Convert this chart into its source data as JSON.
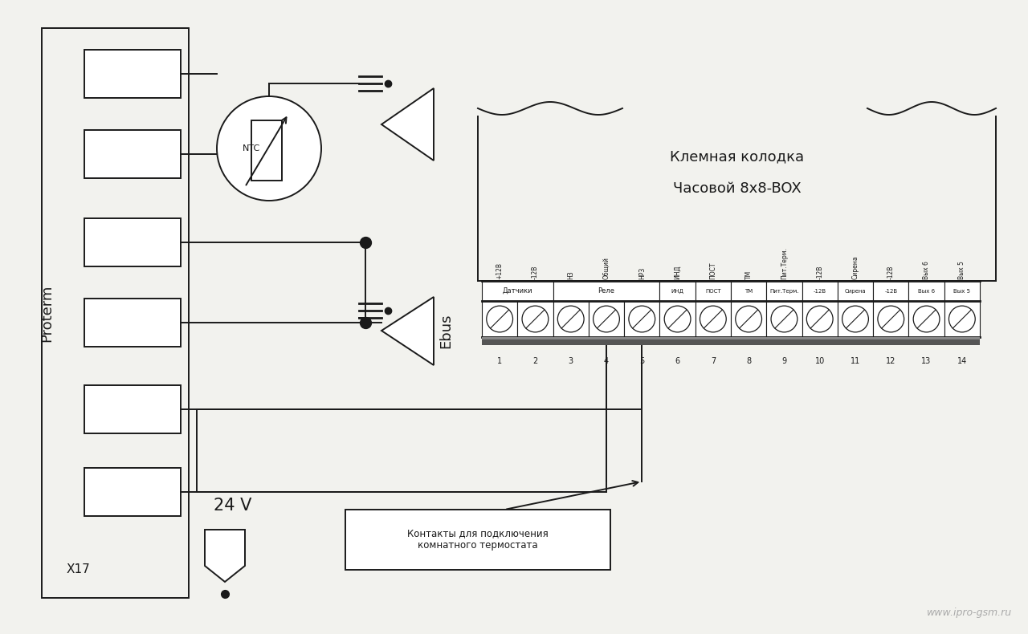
{
  "bg_color": "#f2f2ee",
  "watermark": "www.ipro-gsm.ru",
  "proterm_label": "Proterm",
  "x17_label": "X17",
  "ebus_label": "Ebus",
  "v24_label": "24 V",
  "klemnaya_line1": "Клемная колодка",
  "klemnaya_line2": "Часовой 8х8-BOX",
  "contacts_label": "Контакты для подключения\nкомнатного термостата",
  "terminal_labels_top": [
    "+12В",
    "-12В",
    "НЗ",
    "Общий",
    "НРЗ",
    "ИНД",
    "ПОСТ",
    "ТМ",
    "Пит.Терм.",
    "-12В",
    "Сирена",
    "-12В",
    "Вых 6",
    "Вых 5"
  ],
  "terminal_numbers": [
    "1",
    "2",
    "3",
    "4",
    "5",
    "6",
    "7",
    "8",
    "9",
    "10",
    "11",
    "12",
    "13",
    "14"
  ],
  "group_datчики_label": "Датчики",
  "group_rele_label": "Реле",
  "group_ind_label": "ИНД",
  "group_post_label": "ПОСТ",
  "group_tm_label": "ТМ",
  "group_pit_label": "Пит.Терм.",
  "group_12v_label": "-12В",
  "group_siren_label": "Сирена",
  "group_12v2_label": "-12В",
  "group_vyx6_label": "Вых 6",
  "group_vyx5_label": "Вых 5"
}
